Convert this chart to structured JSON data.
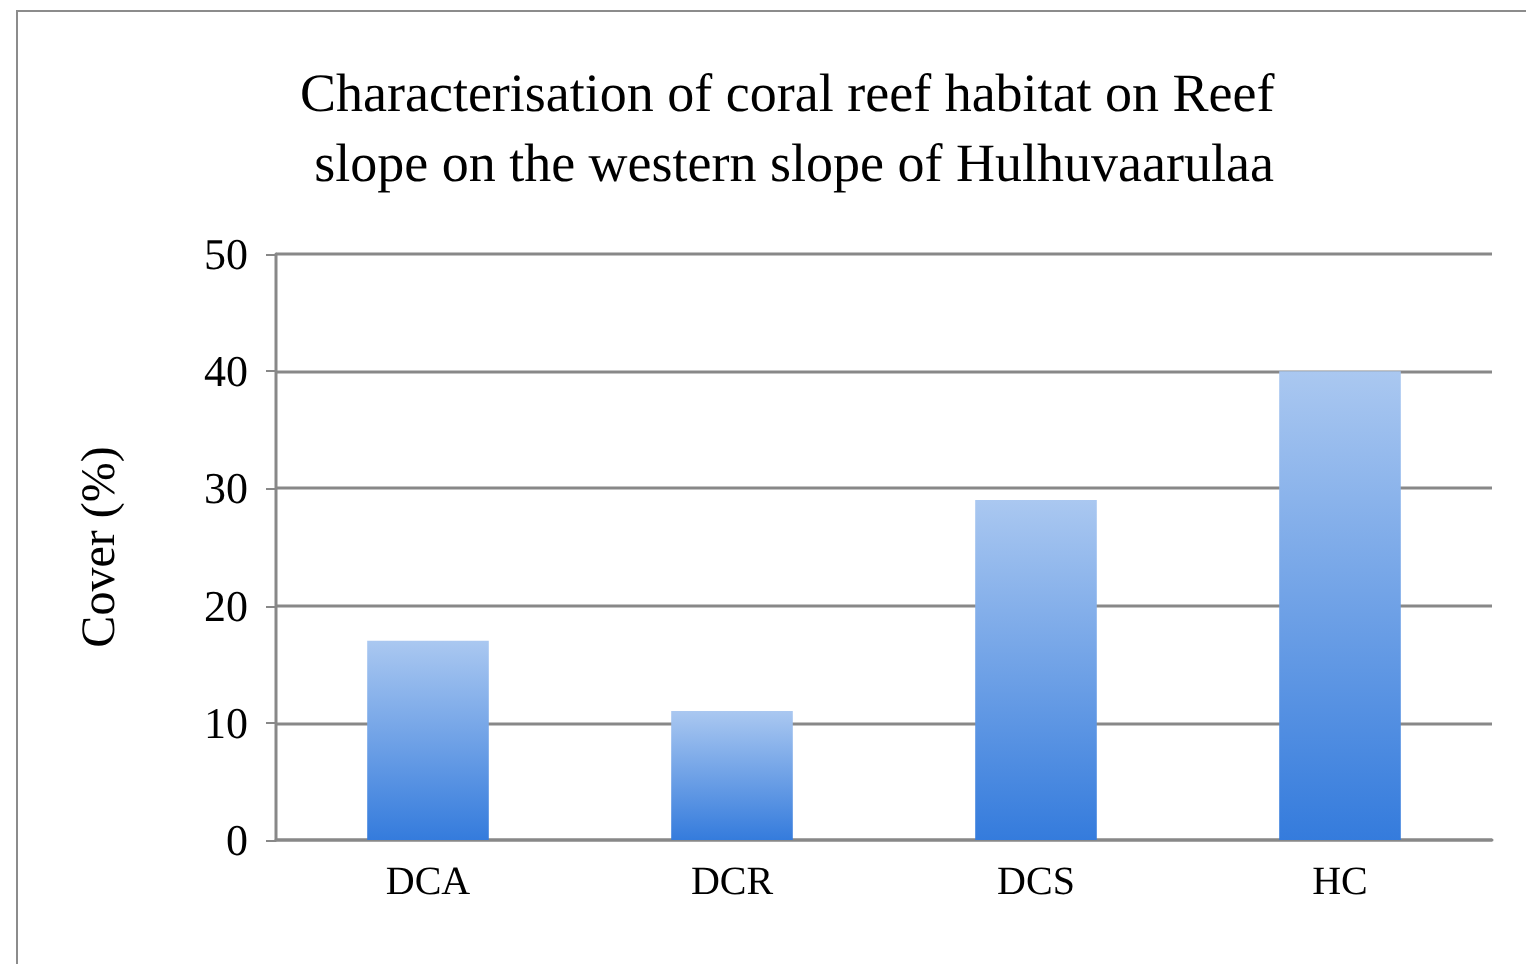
{
  "chart_data": {
    "type": "bar",
    "title": "Characterisation of coral reef habitat on Reef slope on the western slope of Hulhuvaarulaa",
    "ylabel": "Cover (%)",
    "categories": [
      "DCA",
      "DCR",
      "DCS",
      "HC"
    ],
    "values": [
      17,
      11,
      29,
      40
    ],
    "color": "#6da0e6",
    "ylim": [
      0,
      50
    ],
    "yticks": [
      0,
      10,
      20,
      30,
      40,
      50
    ],
    "grid": "y"
  }
}
